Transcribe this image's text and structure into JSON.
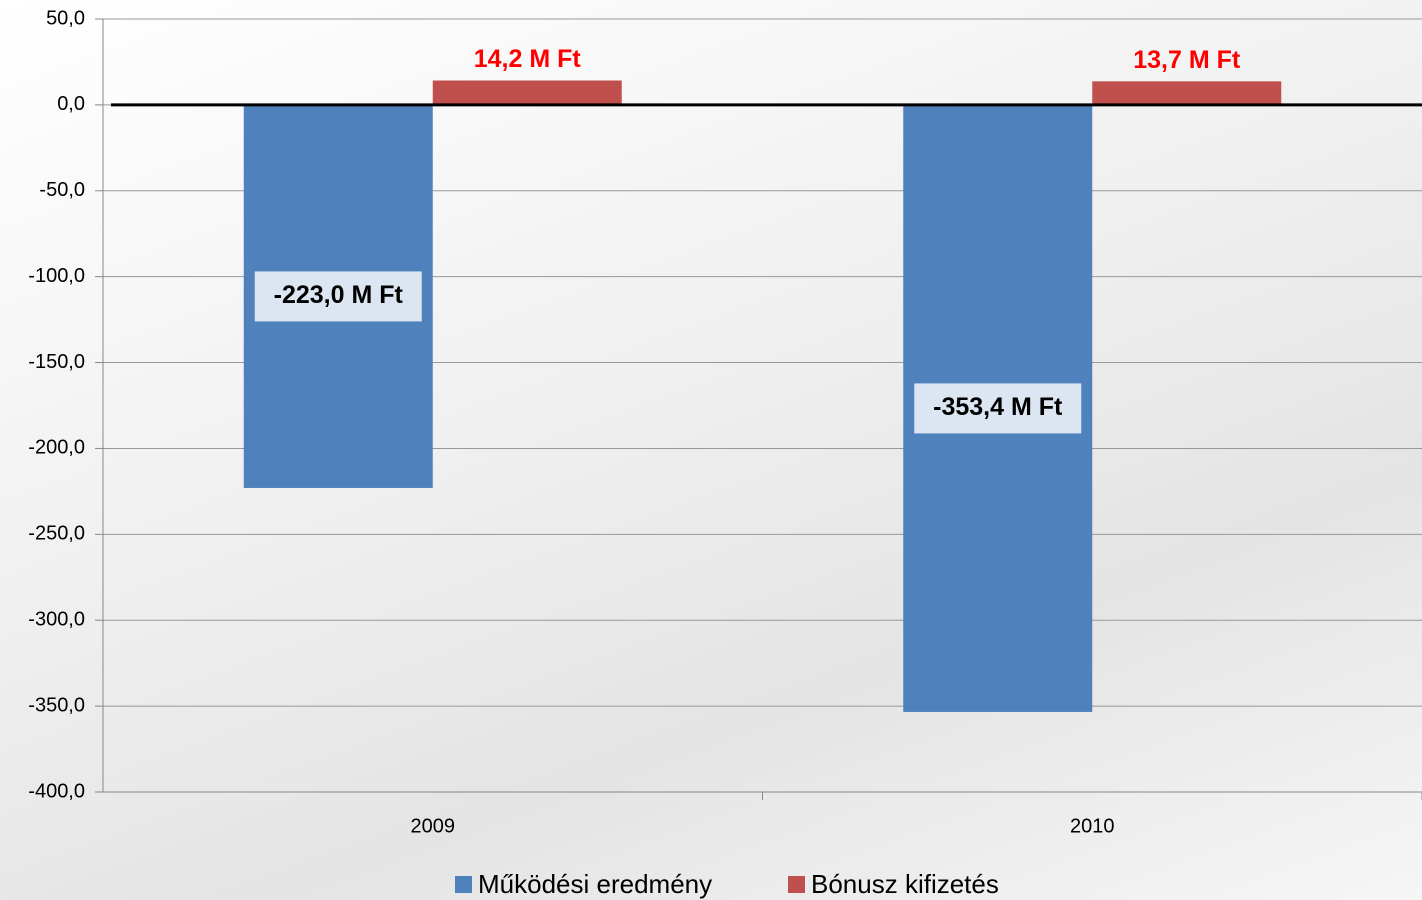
{
  "chart_data": {
    "type": "bar",
    "categories": [
      "2009",
      "2010"
    ],
    "series": [
      {
        "name": "Működési eredmény",
        "color": "#4f81bd",
        "values": [
          -223.0,
          -353.4
        ],
        "value_labels": [
          "-223,0 M Ft",
          "-353,4 M Ft"
        ]
      },
      {
        "name": "Bónusz kifizetés",
        "color": "#c0504d",
        "values": [
          14.2,
          13.7
        ],
        "value_labels": [
          "14,2 M Ft",
          "13,7 M Ft"
        ]
      }
    ],
    "ylim": [
      -400,
      50
    ],
    "yticks": [
      {
        "value": 50,
        "label": "50,0"
      },
      {
        "value": 0,
        "label": "0,0"
      },
      {
        "value": -50,
        "label": "-50,0"
      },
      {
        "value": -100,
        "label": "-100,0"
      },
      {
        "value": -150,
        "label": "-150,0"
      },
      {
        "value": -200,
        "label": "-200,0"
      },
      {
        "value": -250,
        "label": "-250,0"
      },
      {
        "value": -300,
        "label": "-300,0"
      },
      {
        "value": -350,
        "label": "-350,0"
      },
      {
        "value": -400,
        "label": "-400,0"
      }
    ],
    "grid": true,
    "legend": "bottom"
  }
}
